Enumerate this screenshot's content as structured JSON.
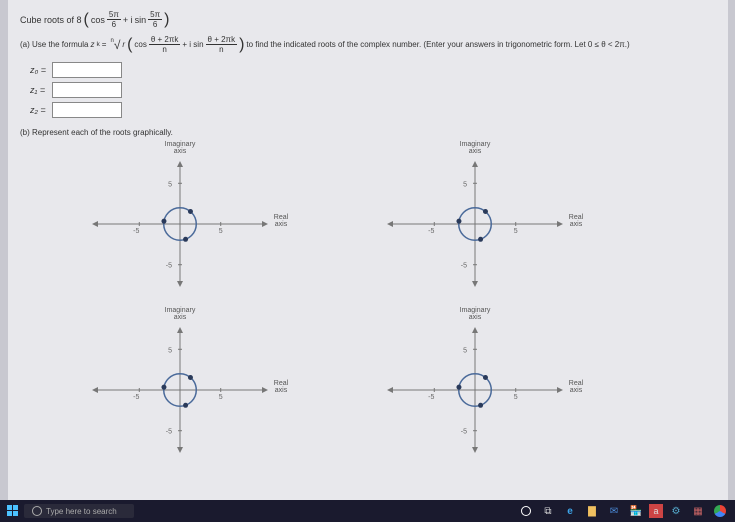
{
  "question": {
    "prefix": "Cube roots of 8",
    "cos_label": "cos",
    "sin_label": "sin",
    "plus_i": " + i ",
    "angle_num": "5π",
    "angle_den": "6"
  },
  "partA": {
    "label": "(a) Use the formula ",
    "zk": "z",
    "k_sub": "k",
    "equals": " = ",
    "root_idx": "n",
    "root_of": "r",
    "cos": "cos",
    "sin": "sin",
    "plus_i_sin": " + i sin ",
    "frac_num": "θ + 2πk",
    "frac_den": "n",
    "tail": " to find the indicated roots of the complex number. (Enter your answers in trigonometric form. Let 0 ≤ θ < 2π.)"
  },
  "answers": {
    "rows": [
      {
        "label": "z₀ ="
      },
      {
        "label": "z₁ ="
      },
      {
        "label": "z₂ ="
      }
    ]
  },
  "partB": {
    "label": "(b) Represent each of the roots graphically."
  },
  "graph": {
    "imag_label": "Imaginary\naxis",
    "real_label": "Real\naxis",
    "ticks": {
      "neg": "-5",
      "pos": "5"
    },
    "axis_color": "#777",
    "circle_color": "#4a6a9a",
    "point_color": "#2a3a5a",
    "grid_color": "#ccc",
    "circle_radius": 2,
    "axis_range": 7,
    "points": [
      {
        "angle_deg": 50
      },
      {
        "angle_deg": 170
      },
      {
        "angle_deg": 290
      }
    ]
  },
  "taskbar": {
    "search": "Type here to search",
    "icons": [
      "⊞",
      "◯",
      "⧉",
      "e",
      "📁",
      "✉",
      "🏪",
      "a",
      "⚙",
      "🧮",
      "🌐"
    ]
  }
}
